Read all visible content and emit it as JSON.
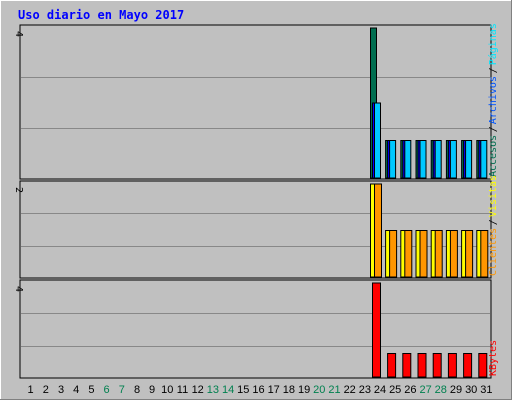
{
  "title": "Uso diario en Mayo 2017",
  "colors": {
    "frame_bg": "#c0c0c0",
    "plot_bg": "#c0c0c0",
    "grid": "#888888",
    "title": "#0000ff",
    "accesos": "#006e50",
    "archivos": "#00c8ff",
    "paginas": "#00e6ff",
    "visitas": "#ffff00",
    "clientes": "#ff9600",
    "kbytes": "#ff0000",
    "weekend": "#00804f",
    "weekday": "#000000"
  },
  "chart_data": [
    {
      "type": "bar",
      "panel": "top",
      "ylim": [
        0,
        4
      ],
      "ytick_label": "4",
      "legend": [
        {
          "name": "Accesos",
          "color": "#006e50"
        },
        {
          "name": "Archivos",
          "color": "#0055ff"
        },
        {
          "name": "Páginas",
          "color": "#00e6ff"
        }
      ],
      "legend_separators": [
        "/",
        "/"
      ],
      "categories": [
        "1",
        "2",
        "3",
        "4",
        "5",
        "6",
        "7",
        "8",
        "9",
        "10",
        "11",
        "12",
        "13",
        "14",
        "15",
        "16",
        "17",
        "18",
        "19",
        "20",
        "21",
        "22",
        "23",
        "24",
        "25",
        "26",
        "27",
        "28",
        "29",
        "30",
        "31"
      ],
      "series": [
        {
          "name": "Accesos",
          "color": "#006e50",
          "values": [
            0,
            0,
            0,
            0,
            0,
            0,
            0,
            0,
            0,
            0,
            0,
            0,
            0,
            0,
            0,
            0,
            0,
            0,
            0,
            0,
            0,
            0,
            0,
            4,
            1,
            1,
            1,
            1,
            1,
            1,
            1
          ]
        },
        {
          "name": "Archivos",
          "color": "#0000ff",
          "values": [
            0,
            0,
            0,
            0,
            0,
            0,
            0,
            0,
            0,
            0,
            0,
            0,
            0,
            0,
            0,
            0,
            0,
            0,
            0,
            0,
            0,
            0,
            0,
            2,
            1,
            1,
            1,
            1,
            1,
            1,
            1
          ]
        },
        {
          "name": "Páginas",
          "color": "#00c8ff",
          "values": [
            0,
            0,
            0,
            0,
            0,
            0,
            0,
            0,
            0,
            0,
            0,
            0,
            0,
            0,
            0,
            0,
            0,
            0,
            0,
            0,
            0,
            0,
            0,
            2,
            1,
            1,
            1,
            1,
            1,
            1,
            1
          ]
        }
      ]
    },
    {
      "type": "bar",
      "panel": "middle",
      "ylim": [
        0,
        2
      ],
      "ytick_label": "2",
      "legend": [
        {
          "name": "Clientes",
          "color": "#ff9600"
        },
        {
          "name": "Visitas",
          "color": "#ffff00"
        }
      ],
      "legend_separators": [
        "/"
      ],
      "categories": [
        "1",
        "2",
        "3",
        "4",
        "5",
        "6",
        "7",
        "8",
        "9",
        "10",
        "11",
        "12",
        "13",
        "14",
        "15",
        "16",
        "17",
        "18",
        "19",
        "20",
        "21",
        "22",
        "23",
        "24",
        "25",
        "26",
        "27",
        "28",
        "29",
        "30",
        "31"
      ],
      "series": [
        {
          "name": "Visitas",
          "color": "#ffff00",
          "values": [
            0,
            0,
            0,
            0,
            0,
            0,
            0,
            0,
            0,
            0,
            0,
            0,
            0,
            0,
            0,
            0,
            0,
            0,
            0,
            0,
            0,
            0,
            0,
            2,
            1,
            1,
            1,
            1,
            1,
            1,
            1
          ]
        },
        {
          "name": "Clientes",
          "color": "#ff9600",
          "values": [
            0,
            0,
            0,
            0,
            0,
            0,
            0,
            0,
            0,
            0,
            0,
            0,
            0,
            0,
            0,
            0,
            0,
            0,
            0,
            0,
            0,
            0,
            0,
            2,
            1,
            1,
            1,
            1,
            1,
            1,
            1
          ]
        }
      ]
    },
    {
      "type": "bar",
      "panel": "bottom",
      "ylim": [
        0,
        4
      ],
      "ytick_label": "4",
      "legend": [
        {
          "name": "KBytes",
          "color": "#ff0000"
        }
      ],
      "legend_separators": [],
      "categories": [
        "1",
        "2",
        "3",
        "4",
        "5",
        "6",
        "7",
        "8",
        "9",
        "10",
        "11",
        "12",
        "13",
        "14",
        "15",
        "16",
        "17",
        "18",
        "19",
        "20",
        "21",
        "22",
        "23",
        "24",
        "25",
        "26",
        "27",
        "28",
        "29",
        "30",
        "31"
      ],
      "series": [
        {
          "name": "KBytes",
          "color": "#ff0000",
          "values": [
            0,
            0,
            0,
            0,
            0,
            0,
            0,
            0,
            0,
            0,
            0,
            0,
            0,
            0,
            0,
            0,
            0,
            0,
            0,
            0,
            0,
            0,
            0,
            4,
            1,
            1,
            1,
            1,
            1,
            1,
            1
          ]
        }
      ]
    }
  ],
  "x_labels": [
    {
      "label": "1",
      "weekend": false
    },
    {
      "label": "2",
      "weekend": false
    },
    {
      "label": "3",
      "weekend": false
    },
    {
      "label": "4",
      "weekend": false
    },
    {
      "label": "5",
      "weekend": false
    },
    {
      "label": "6",
      "weekend": true
    },
    {
      "label": "7",
      "weekend": true
    },
    {
      "label": "8",
      "weekend": false
    },
    {
      "label": "9",
      "weekend": false
    },
    {
      "label": "10",
      "weekend": false
    },
    {
      "label": "11",
      "weekend": false
    },
    {
      "label": "12",
      "weekend": false
    },
    {
      "label": "13",
      "weekend": true
    },
    {
      "label": "14",
      "weekend": true
    },
    {
      "label": "15",
      "weekend": false
    },
    {
      "label": "16",
      "weekend": false
    },
    {
      "label": "17",
      "weekend": false
    },
    {
      "label": "18",
      "weekend": false
    },
    {
      "label": "19",
      "weekend": false
    },
    {
      "label": "20",
      "weekend": true
    },
    {
      "label": "21",
      "weekend": true
    },
    {
      "label": "22",
      "weekend": false
    },
    {
      "label": "23",
      "weekend": false
    },
    {
      "label": "24",
      "weekend": false
    },
    {
      "label": "25",
      "weekend": false
    },
    {
      "label": "26",
      "weekend": false
    },
    {
      "label": "27",
      "weekend": true
    },
    {
      "label": "28",
      "weekend": true
    },
    {
      "label": "29",
      "weekend": false
    },
    {
      "label": "30",
      "weekend": false
    },
    {
      "label": "31",
      "weekend": false
    }
  ]
}
